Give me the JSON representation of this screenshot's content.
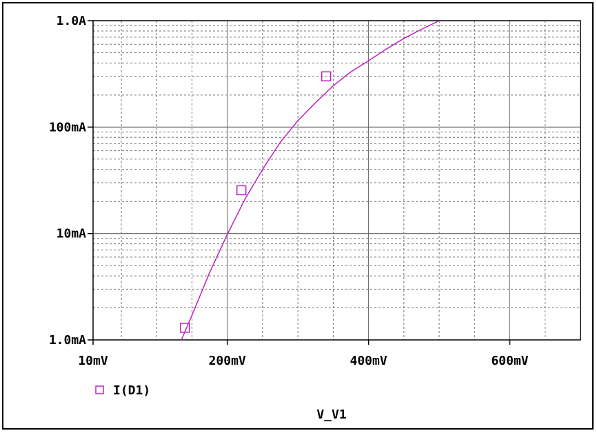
{
  "chart_data": {
    "type": "line",
    "title": "",
    "xlabel": "V_V1",
    "ylabel": "",
    "x_scale": "linear",
    "y_scale": "log",
    "xlim": [
      10,
      700
    ],
    "ylim": [
      0.001,
      1.0
    ],
    "x_ticks": [
      {
        "value": 10,
        "label": "10mV"
      },
      {
        "value": 200,
        "label": "200mV"
      },
      {
        "value": 400,
        "label": "400mV"
      },
      {
        "value": 600,
        "label": "600mV"
      }
    ],
    "y_ticks": [
      {
        "value": 0.001,
        "label": "1.0mA"
      },
      {
        "value": 0.01,
        "label": "10mA"
      },
      {
        "value": 0.1,
        "label": "100mA"
      },
      {
        "value": 1.0,
        "label": "1.0A"
      }
    ],
    "grid": true,
    "legend_position": "bottom-left",
    "series": [
      {
        "name": "I(D1)",
        "color": "#c020c0",
        "marker": "square",
        "x": [
          135,
          150,
          175,
          200,
          225,
          250,
          275,
          300,
          325,
          350,
          375,
          400,
          425,
          450,
          475,
          500
        ],
        "y": [
          0.001,
          0.0017,
          0.0043,
          0.0098,
          0.021,
          0.04,
          0.072,
          0.115,
          0.17,
          0.245,
          0.33,
          0.42,
          0.54,
          0.68,
          0.83,
          1.0
        ],
        "marker_points": [
          {
            "x": 140,
            "y": 0.0013
          },
          {
            "x": 220,
            "y": 0.0255
          },
          {
            "x": 340,
            "y": 0.3
          }
        ]
      }
    ]
  }
}
